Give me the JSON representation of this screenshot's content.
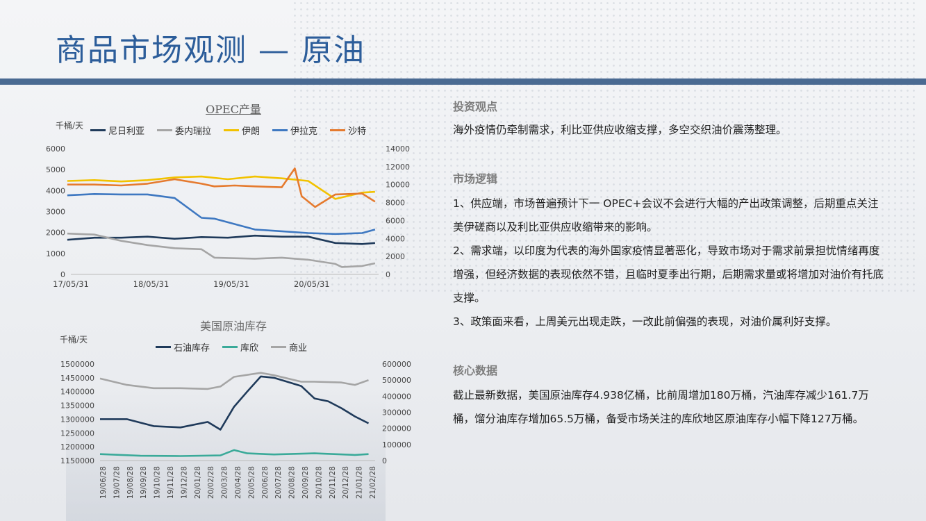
{
  "page": {
    "title": "商品市场观测 — 原油"
  },
  "opec_chart": {
    "title": "OPEC产量",
    "unit": "千桶/天",
    "legend": [
      {
        "name": "尼日利亚",
        "color": "#1f3a5a"
      },
      {
        "name": "委内瑞拉",
        "color": "#a5a5a5"
      },
      {
        "name": "伊朗",
        "color": "#f2c200"
      },
      {
        "name": "伊拉克",
        "color": "#3e78c1"
      },
      {
        "name": "沙特",
        "color": "#e57a2e"
      }
    ],
    "left_ticks": [
      "0",
      "1000",
      "2000",
      "3000",
      "4000",
      "5000",
      "6000"
    ],
    "right_ticks": [
      "0",
      "2000",
      "4000",
      "6000",
      "8000",
      "10000",
      "12000",
      "14000"
    ],
    "x_ticks": [
      "17/05/31",
      "18/05/31",
      "19/05/31",
      "20/05/31"
    ]
  },
  "inventory_chart": {
    "title": "美国原油库存",
    "unit": "千桶/天",
    "legend": [
      {
        "name": "石油库存",
        "color": "#1f3a5a"
      },
      {
        "name": "库欣",
        "color": "#3aaa99"
      },
      {
        "name": "商业",
        "color": "#a5a5a5"
      }
    ],
    "left_ticks": [
      "1150000",
      "1200000",
      "1250000",
      "1300000",
      "1350000",
      "1400000",
      "1450000",
      "1500000"
    ],
    "right_ticks": [
      "0",
      "100000",
      "200000",
      "300000",
      "400000",
      "500000",
      "600000"
    ],
    "x_ticks": [
      "19/06/28",
      "19/07/28",
      "19/08/28",
      "19/09/28",
      "19/10/28",
      "19/11/28",
      "19/12/28",
      "20/01/28",
      "20/02/28",
      "20/03/28",
      "20/04/28",
      "20/05/28",
      "20/06/28",
      "20/07/28",
      "20/08/28",
      "20/09/28",
      "20/10/28",
      "20/11/28",
      "20/12/28",
      "21/01/28",
      "21/02/28"
    ]
  },
  "chart_data": [
    {
      "type": "line",
      "title": "OPEC产量",
      "ylabel": "千桶/天",
      "x_range": [
        "2017-05-31",
        "2021-03-31"
      ],
      "ylim": [
        0,
        6000
      ],
      "y2lim": [
        0,
        14000
      ],
      "series": [
        {
          "name": "尼日利亚",
          "axis": "left",
          "color": "#1f3a5a",
          "x": [
            "2017-05",
            "2017-09",
            "2018-01",
            "2018-05",
            "2018-09",
            "2019-01",
            "2019-05",
            "2019-09",
            "2020-01",
            "2020-05",
            "2020-09",
            "2021-01",
            "2021-03"
          ],
          "values": [
            1650,
            1750,
            1750,
            1800,
            1700,
            1780,
            1750,
            1850,
            1800,
            1800,
            1500,
            1450,
            1500
          ]
        },
        {
          "name": "委内瑞拉",
          "axis": "left",
          "color": "#a5a5a5",
          "x": [
            "2017-05",
            "2017-09",
            "2018-01",
            "2018-05",
            "2018-09",
            "2019-01",
            "2019-03",
            "2019-09",
            "2020-01",
            "2020-05",
            "2020-09",
            "2020-10",
            "2021-01",
            "2021-03"
          ],
          "values": [
            1950,
            1900,
            1600,
            1400,
            1250,
            1200,
            800,
            750,
            800,
            700,
            500,
            350,
            400,
            530
          ]
        },
        {
          "name": "伊朗",
          "axis": "right",
          "color": "#f2c200",
          "x": [
            "2017-05",
            "2017-09",
            "2018-01",
            "2018-05",
            "2018-09",
            "2019-01",
            "2019-05",
            "2019-09",
            "2020-01",
            "2020-05",
            "2020-09",
            "2021-01",
            "2021-03"
          ],
          "values": [
            10400,
            10500,
            10350,
            10500,
            10800,
            10900,
            10600,
            10900,
            10700,
            10400,
            8400,
            9100,
            9200
          ]
        },
        {
          "name": "伊拉克",
          "axis": "right",
          "color": "#3e78c1",
          "x": [
            "2017-05",
            "2017-09",
            "2018-01",
            "2018-05",
            "2018-09",
            "2019-01",
            "2019-03",
            "2019-09",
            "2020-01",
            "2020-05",
            "2020-09",
            "2021-01",
            "2021-03"
          ],
          "values": [
            8800,
            8950,
            8900,
            8900,
            8500,
            6300,
            6200,
            5000,
            4800,
            4600,
            4500,
            4600,
            5000
          ]
        },
        {
          "name": "沙特",
          "axis": "right",
          "color": "#e57a2e",
          "x": [
            "2017-05",
            "2017-09",
            "2018-01",
            "2018-05",
            "2018-09",
            "2019-01",
            "2019-03",
            "2019-06",
            "2019-09",
            "2020-01",
            "2020-03",
            "2020-04",
            "2020-06",
            "2020-09",
            "2021-01",
            "2021-03"
          ],
          "values": [
            10000,
            10000,
            9900,
            10100,
            10600,
            10100,
            9800,
            9900,
            9800,
            9700,
            11800,
            8700,
            7500,
            8900,
            9000,
            8100
          ]
        }
      ]
    },
    {
      "type": "line",
      "title": "美国原油库存",
      "ylabel": "千桶/天",
      "x_range": [
        "2019-06-28",
        "2021-03-15"
      ],
      "ylim": [
        1150000,
        1500000
      ],
      "y2lim": [
        0,
        600000
      ],
      "series": [
        {
          "name": "石油库存",
          "axis": "left",
          "color": "#1f3a5a",
          "x": [
            "2019-06-28",
            "2019-08-28",
            "2019-10-28",
            "2019-12-28",
            "2020-02-28",
            "2020-03-28",
            "2020-04-28",
            "2020-05-28",
            "2020-06-28",
            "2020-07-28",
            "2020-08-28",
            "2020-09-28",
            "2020-10-28",
            "2020-11-28",
            "2020-12-28",
            "2021-01-28",
            "2021-02-28"
          ],
          "values": [
            1300000,
            1300000,
            1275000,
            1270000,
            1290000,
            1262000,
            1345000,
            1400000,
            1455000,
            1450000,
            1435000,
            1420000,
            1375000,
            1365000,
            1340000,
            1310000,
            1285000
          ]
        },
        {
          "name": "库欣",
          "axis": "right",
          "color": "#3aaa99",
          "x": [
            "2019-06-28",
            "2019-09-28",
            "2019-12-28",
            "2020-03-28",
            "2020-04-28",
            "2020-05-28",
            "2020-07-28",
            "2020-10-28",
            "2021-01-28",
            "2021-02-28"
          ],
          "values": [
            40000,
            30000,
            28000,
            32000,
            65000,
            45000,
            38000,
            45000,
            35000,
            40000
          ]
        },
        {
          "name": "商业",
          "axis": "right",
          "color": "#a5a5a5",
          "x": [
            "2019-06-28",
            "2019-08-28",
            "2019-10-28",
            "2019-12-28",
            "2020-02-28",
            "2020-03-28",
            "2020-04-28",
            "2020-06-28",
            "2020-07-28",
            "2020-09-28",
            "2020-10-28",
            "2020-12-28",
            "2021-01-28",
            "2021-02-28"
          ],
          "values": [
            510000,
            470000,
            450000,
            450000,
            445000,
            460000,
            520000,
            545000,
            530000,
            490000,
            490000,
            485000,
            470000,
            500000
          ]
        }
      ]
    }
  ],
  "analysis": {
    "section1_title": "投资观点",
    "section1_text": "海外疫情仍牵制需求，利比亚供应收缩支撑，多空交织油价震荡整理。",
    "section2_title": "市场逻辑",
    "section2_p1": "1、供应端，市场普遍预计下一 OPEC+会议不会进行大幅的产出政策调整，后期重点关注美伊磋商以及利比亚供应收缩带来的影响。",
    "section2_p2": "2、需求端，以印度为代表的海外国家疫情显著恶化，导致市场对于需求前景担忧情绪再度增强，但经济数据的表现依然不错，且临时夏季出行期，后期需求量或将增加对油价有托底支撑。",
    "section2_p3": "3、政策面来看，上周美元出现走跌，一改此前偏强的表现，对油价属利好支撑。",
    "section3_title": "核心数据",
    "section3_text": "截止最新数据，美国原油库存4.938亿桶，比前周增加180万桶，汽油库存减少161.7万桶，馏分油库存增加65.5万桶，备受市场关注的库欣地区原油库存小幅下降127万桶。"
  }
}
